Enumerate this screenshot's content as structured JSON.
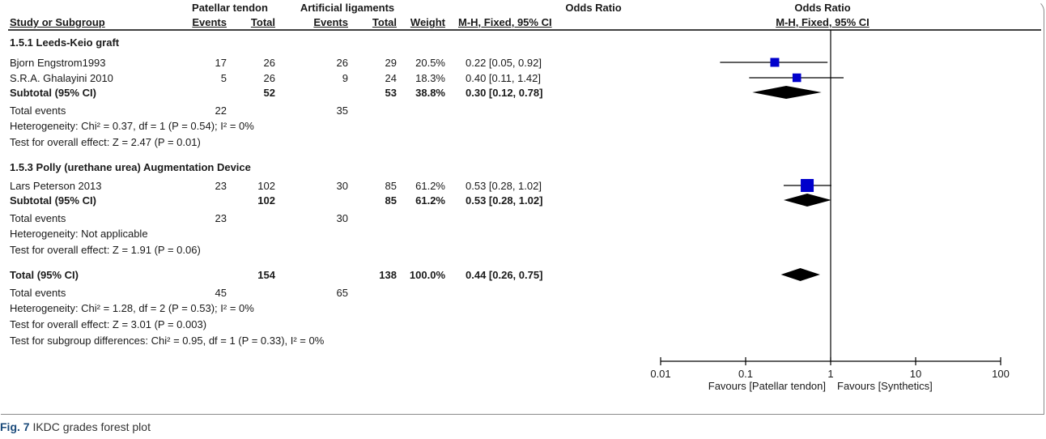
{
  "header": {
    "group1": "Patellar tendon",
    "group2": "Artificial ligaments",
    "or_title": "Odds Ratio",
    "plot_title": "Odds Ratio",
    "col_study": "Study or Subgroup",
    "col_events1": "Events",
    "col_total1": "Total",
    "col_events2": "Events",
    "col_total2": "Total",
    "col_weight": "Weight",
    "col_method": "M-H, Fixed, 95% CI",
    "plot_method": "M-H, Fixed, 95% CI"
  },
  "rows": [
    {
      "kind": "heading",
      "label": "1.5.1 Leeds-Keio graft"
    },
    {
      "kind": "study",
      "label": "Bjorn Engstrom1993",
      "e1": "17",
      "t1": "26",
      "e2": "26",
      "t2": "29",
      "w": "20.5%",
      "ci": "0.22 [0.05, 0.92]"
    },
    {
      "kind": "study",
      "label": "S.R.A. Ghalayini 2010",
      "e1": "5",
      "t1": "26",
      "e2": "9",
      "t2": "24",
      "w": "18.3%",
      "ci": "0.40 [0.11, 1.42]"
    },
    {
      "kind": "subtotal",
      "label": "Subtotal (95% CI)",
      "e1": "",
      "t1": "52",
      "e2": "",
      "t2": "53",
      "w": "38.8%",
      "ci": "0.30 [0.12, 0.78]"
    },
    {
      "kind": "events",
      "label": "Total events",
      "e1": "22",
      "t1": "",
      "e2": "35",
      "t2": "",
      "w": "",
      "ci": ""
    },
    {
      "kind": "note",
      "label": "Heterogeneity: Chi² = 0.37, df = 1 (P = 0.54); I² = 0%"
    },
    {
      "kind": "note",
      "label": "Test for overall effect: Z = 2.47 (P = 0.01)"
    },
    {
      "kind": "heading",
      "label": "1.5.3 Polly (urethane urea) Augmentation Device"
    },
    {
      "kind": "study",
      "label": "Lars Peterson 2013",
      "e1": "23",
      "t1": "102",
      "e2": "30",
      "t2": "85",
      "w": "61.2%",
      "ci": "0.53 [0.28, 1.02]"
    },
    {
      "kind": "subtotal",
      "label": "Subtotal (95% CI)",
      "e1": "",
      "t1": "102",
      "e2": "",
      "t2": "85",
      "w": "61.2%",
      "ci": "0.53 [0.28, 1.02]"
    },
    {
      "kind": "events",
      "label": "Total events",
      "e1": "23",
      "t1": "",
      "e2": "30",
      "t2": "",
      "w": "",
      "ci": ""
    },
    {
      "kind": "note",
      "label": "Heterogeneity: Not applicable"
    },
    {
      "kind": "note",
      "label": "Test for overall effect: Z = 1.91 (P = 0.06)"
    },
    {
      "kind": "subtotal",
      "label": "Total (95% CI)",
      "e1": "",
      "t1": "154",
      "e2": "",
      "t2": "138",
      "w": "100.0%",
      "ci": "0.44 [0.26, 0.75]"
    },
    {
      "kind": "events",
      "label": "Total events",
      "e1": "45",
      "t1": "",
      "e2": "65",
      "t2": "",
      "w": "",
      "ci": ""
    },
    {
      "kind": "note",
      "label": "Heterogeneity: Chi² = 1.28, df = 2 (P = 0.53); I² = 0%"
    },
    {
      "kind": "note",
      "label": "Test for overall effect: Z = 3.01 (P = 0.003)"
    },
    {
      "kind": "note",
      "label": "Test for subgroup differences: Chi² = 0.95, df = 1 (P = 0.33), I² = 0%"
    }
  ],
  "chart_data": {
    "type": "forest",
    "x_scale": "log",
    "xlim": [
      0.01,
      100
    ],
    "x_ticks": [
      0.01,
      0.1,
      1,
      10,
      100
    ],
    "x_tick_labels": [
      "0.01",
      "0.1",
      "1",
      "10",
      "100"
    ],
    "null_line": 1,
    "favours_left": "Favours [Patellar tendon]",
    "favours_right": "Favours [Synthetics]",
    "square_color": "#0000cc",
    "diamond_color": "#000000",
    "studies": [
      {
        "name": "Bjorn Engstrom1993",
        "or": 0.22,
        "lo": 0.05,
        "hi": 0.92,
        "weight": 20.5
      },
      {
        "name": "S.R.A. Ghalayini 2010",
        "or": 0.4,
        "lo": 0.11,
        "hi": 1.42,
        "weight": 18.3
      },
      {
        "name": "Lars Peterson 2013",
        "or": 0.53,
        "lo": 0.28,
        "hi": 1.02,
        "weight": 61.2
      }
    ],
    "diamonds": [
      {
        "name": "Subtotal 1.5.1",
        "or": 0.3,
        "lo": 0.12,
        "hi": 0.78
      },
      {
        "name": "Subtotal 1.5.3",
        "or": 0.53,
        "lo": 0.28,
        "hi": 1.02
      },
      {
        "name": "Total",
        "or": 0.44,
        "lo": 0.26,
        "hi": 0.75
      }
    ]
  },
  "caption": {
    "label": "Fig. 7",
    "text": "IKDC grades forest plot"
  }
}
